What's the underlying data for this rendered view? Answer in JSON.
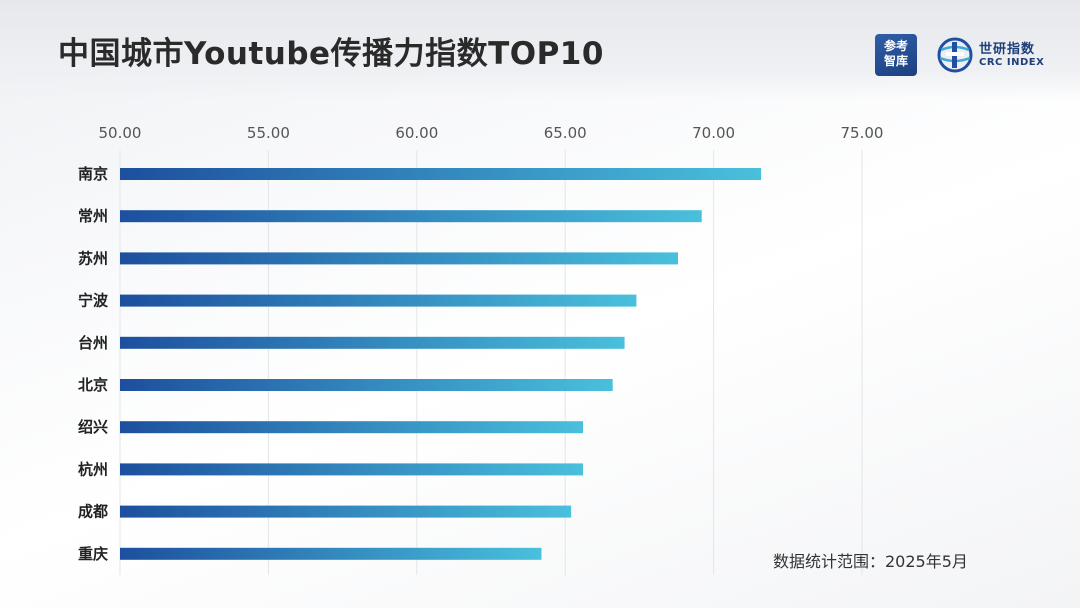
{
  "header": {
    "title": "中国城市Youtube传播力指数TOP10",
    "logo_left_lines": [
      "参考",
      "智库"
    ],
    "logo_right_cn": "世研指数",
    "logo_right_en": "CRC INDEX"
  },
  "footnote": "数据统计范围：2025年5月",
  "colors": {
    "bar_start": "#1d4f9e",
    "bar_end": "#49c0dc",
    "grid": "#e3e5e8",
    "tick_text": "#555555",
    "label_text": "#222222"
  },
  "chart_data": {
    "type": "bar",
    "orientation": "horizontal",
    "title": "中国城市Youtube传播力指数TOP10",
    "categories": [
      "南京",
      "常州",
      "苏州",
      "宁波",
      "台州",
      "北京",
      "绍兴",
      "杭州",
      "成都",
      "重庆"
    ],
    "values": [
      71.6,
      69.6,
      68.8,
      67.4,
      67.0,
      66.6,
      65.6,
      65.6,
      65.2,
      64.2
    ],
    "xlim": [
      50,
      75
    ],
    "xticks": [
      "50.00",
      "55.00",
      "60.00",
      "65.00",
      "70.00",
      "75.00"
    ],
    "xtick_values": [
      50,
      55,
      60,
      65,
      70,
      75
    ],
    "axis_position": "top",
    "grid": true,
    "legend": "none"
  }
}
